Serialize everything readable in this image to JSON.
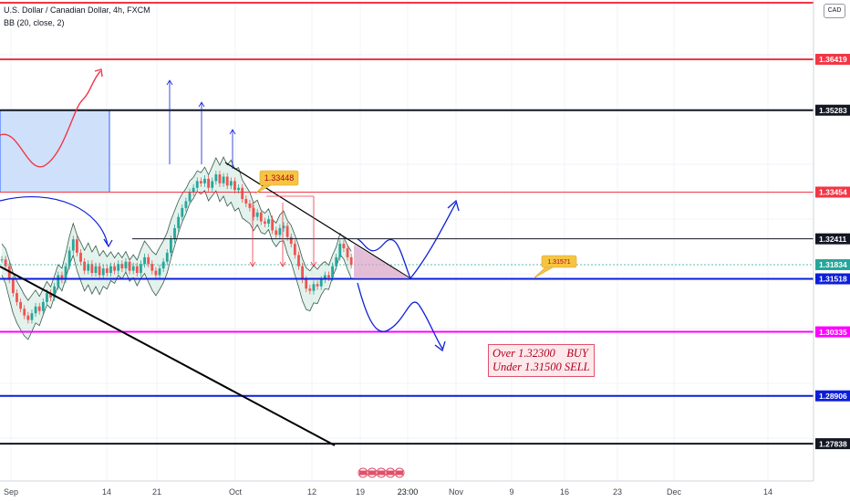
{
  "header": {
    "title": "U.S. Dollar / Canadian Dollar, 4h, FXCM",
    "indicator": "BB (20, close, 2)"
  },
  "currency_badge": "CAD",
  "note": {
    "line1": "Over 1.32300    BUY",
    "line2": "Under 1.31500 SELL"
  },
  "colors": {
    "red": "#f23645",
    "black": "#131722",
    "blue": "#0d1ed8",
    "magenta": "#ff00ff",
    "bullish": "#26a69a",
    "bearish": "#ef5350",
    "band_fill": "#c8e6d9"
  },
  "chart_data": {
    "type": "line",
    "y_axis": {
      "side": "right",
      "min": 1.27,
      "max": 1.37
    },
    "x_ticks": [
      "Sep",
      "14",
      "21",
      "Oct",
      "12",
      "19",
      "23:00",
      "Nov",
      "9",
      "16",
      "23",
      "Dec",
      "14"
    ],
    "horizontal_levels": [
      {
        "label": "1.36419",
        "value": 1.36419,
        "color": "#f23645"
      },
      {
        "label": "1.35283",
        "value": 1.35283,
        "color": "#131722"
      },
      {
        "label": "1.33454",
        "value": 1.33454,
        "color": "#f23645"
      },
      {
        "label": "1.32411",
        "value": 1.32411,
        "color": "#131722"
      },
      {
        "label": "1.31834",
        "value": 1.31834,
        "color": "#26a69a"
      },
      {
        "label": "1.31518",
        "value": 1.31518,
        "color": "#0d1ed8"
      },
      {
        "label": "1.30335",
        "value": 1.30335,
        "color": "#ff00ff"
      },
      {
        "label": "1.28906",
        "value": 1.28906,
        "color": "#0d1ed8"
      },
      {
        "label": "1.27838",
        "value": 1.27838,
        "color": "#131722"
      }
    ],
    "annotations": [
      {
        "text": "1.33448",
        "value": 1.33448
      },
      {
        "text": "1.31571",
        "value": 1.31571
      }
    ],
    "price_series": [
      1.3195,
      1.318,
      1.315,
      1.312,
      1.31,
      1.3085,
      1.307,
      1.306,
      1.3075,
      1.309,
      1.308,
      1.31,
      1.312,
      1.311,
      1.3135,
      1.316,
      1.315,
      1.318,
      1.3215,
      1.324,
      1.321,
      1.319,
      1.317,
      1.3185,
      1.3165,
      1.318,
      1.316,
      1.3175,
      1.3165,
      1.318,
      1.317,
      1.3185,
      1.3175,
      1.319,
      1.317,
      1.318,
      1.3165,
      1.3185,
      1.32,
      1.3185,
      1.317,
      1.316,
      1.3175,
      1.319,
      1.321,
      1.324,
      1.3265,
      1.329,
      1.331,
      1.3325,
      1.3345,
      1.3355,
      1.337,
      1.3365,
      1.3375,
      1.3355,
      1.337,
      1.3385,
      1.3365,
      1.338,
      1.336,
      1.337,
      1.335,
      1.3355,
      1.333,
      1.332,
      1.331,
      1.329,
      1.33,
      1.328,
      1.3275,
      1.3285,
      1.326,
      1.325,
      1.3265,
      1.327,
      1.3245,
      1.323,
      1.3205,
      1.318,
      1.315,
      1.313,
      1.3125,
      1.314,
      1.3135,
      1.315,
      1.316,
      1.3155,
      1.318,
      1.32,
      1.323,
      1.322,
      1.32,
      1.3183
    ],
    "bands": {
      "upper_offset": 0.0035,
      "lower_offset": 0.0035
    }
  }
}
